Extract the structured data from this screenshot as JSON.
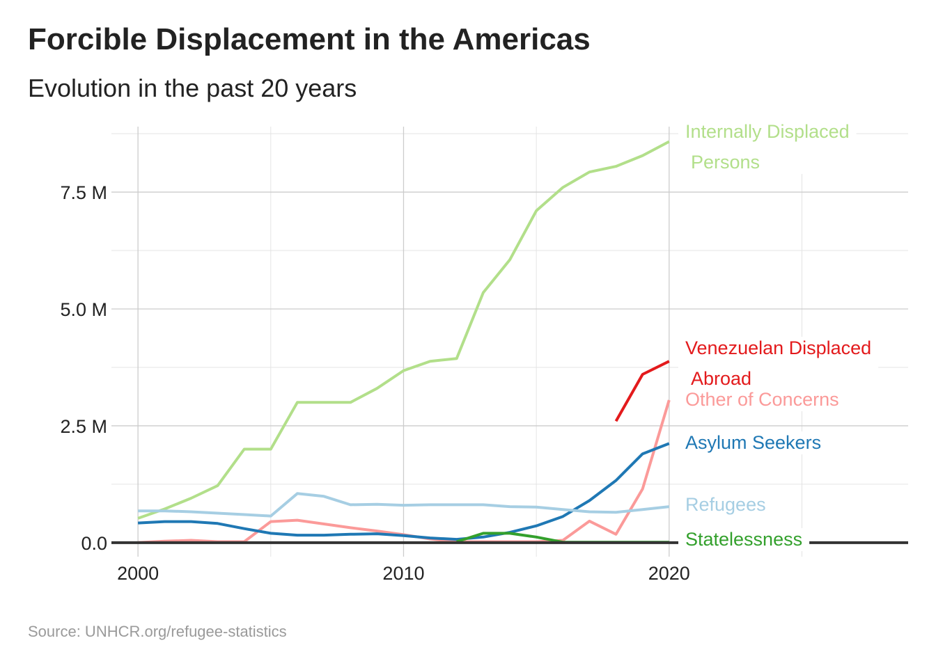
{
  "title": "Forcible Displacement in the Americas",
  "subtitle": "Evolution in the past 20 years",
  "caption": "Source: UNHCR.org/refugee-statistics",
  "chart_data": {
    "type": "line",
    "title": "Forcible Displacement in the Americas",
    "subtitle": "Evolution in the past 20 years",
    "xlabel": "",
    "ylabel": "",
    "xlim": [
      1999,
      2029
    ],
    "ylim": [
      -0.3,
      8.9
    ],
    "x_ticks": [
      2000,
      2010,
      2020
    ],
    "x_tick_labels": [
      "2000",
      "2010",
      "2020"
    ],
    "y_ticks": [
      0,
      2.5,
      5.0,
      7.5
    ],
    "y_tick_labels": [
      "0.0",
      "2.5 M",
      "5.0 M",
      "7.5 M"
    ],
    "y_unit": "M",
    "grid": true,
    "legend": "direct labels at line ends",
    "series": [
      {
        "name": "Internally Displaced Persons",
        "label_lines": [
          "Internally Displaced",
          "Persons"
        ],
        "color": "#b2df8a",
        "x": [
          2000,
          2001,
          2002,
          2003,
          2004,
          2005,
          2006,
          2007,
          2008,
          2009,
          2010,
          2011,
          2012,
          2013,
          2014,
          2015,
          2016,
          2017,
          2018,
          2019,
          2020
        ],
        "y": [
          0.52,
          0.72,
          0.95,
          1.22,
          2.0,
          2.0,
          3.0,
          3.0,
          3.0,
          3.3,
          3.68,
          3.88,
          3.94,
          5.35,
          6.05,
          7.1,
          7.6,
          7.93,
          8.05,
          8.28,
          8.58
        ]
      },
      {
        "name": "Venezuelan Displaced Abroad",
        "label_lines": [
          "Venezuelan Displaced",
          "Abroad"
        ],
        "color": "#e31a1c",
        "x": [
          2018,
          2019,
          2020
        ],
        "y": [
          2.6,
          3.6,
          3.88
        ]
      },
      {
        "name": "Other of Concerns",
        "label_lines": [
          "Other of Concerns"
        ],
        "color": "#fb9a99",
        "x": [
          2000,
          2001,
          2002,
          2003,
          2004,
          2005,
          2006,
          2007,
          2008,
          2009,
          2010,
          2011,
          2012,
          2013,
          2014,
          2015,
          2016,
          2017,
          2018,
          2019,
          2020
        ],
        "y": [
          0.0,
          0.03,
          0.05,
          0.02,
          0.02,
          0.45,
          0.48,
          0.4,
          0.32,
          0.25,
          0.17,
          0.08,
          0.02,
          0.02,
          0.02,
          0.02,
          0.05,
          0.46,
          0.18,
          1.15,
          3.05
        ]
      },
      {
        "name": "Asylum Seekers",
        "label_lines": [
          "Asylum Seekers"
        ],
        "color": "#1f78b4",
        "x": [
          2000,
          2001,
          2002,
          2003,
          2004,
          2005,
          2006,
          2007,
          2008,
          2009,
          2010,
          2011,
          2012,
          2013,
          2014,
          2015,
          2016,
          2017,
          2018,
          2019,
          2020
        ],
        "y": [
          0.42,
          0.45,
          0.45,
          0.41,
          0.3,
          0.2,
          0.16,
          0.16,
          0.18,
          0.19,
          0.15,
          0.1,
          0.07,
          0.12,
          0.22,
          0.36,
          0.56,
          0.9,
          1.33,
          1.9,
          2.12
        ]
      },
      {
        "name": "Refugees",
        "label_lines": [
          "Refugees"
        ],
        "color": "#a6cee3",
        "x": [
          2000,
          2001,
          2002,
          2003,
          2004,
          2005,
          2006,
          2007,
          2008,
          2009,
          2010,
          2011,
          2012,
          2013,
          2014,
          2015,
          2016,
          2017,
          2018,
          2019,
          2020
        ],
        "y": [
          0.68,
          0.68,
          0.66,
          0.63,
          0.6,
          0.57,
          1.05,
          0.99,
          0.81,
          0.82,
          0.8,
          0.81,
          0.81,
          0.81,
          0.77,
          0.76,
          0.71,
          0.66,
          0.65,
          0.71,
          0.77
        ]
      },
      {
        "name": "Statelessness",
        "label_lines": [
          "Statelessness"
        ],
        "color": "#33a02c",
        "x": [
          2012,
          2013,
          2014,
          2015,
          2016,
          2017,
          2018,
          2019,
          2020
        ],
        "y": [
          0.02,
          0.2,
          0.2,
          0.12,
          0.01,
          0.01,
          0.01,
          0.01,
          0.01
        ]
      }
    ]
  }
}
